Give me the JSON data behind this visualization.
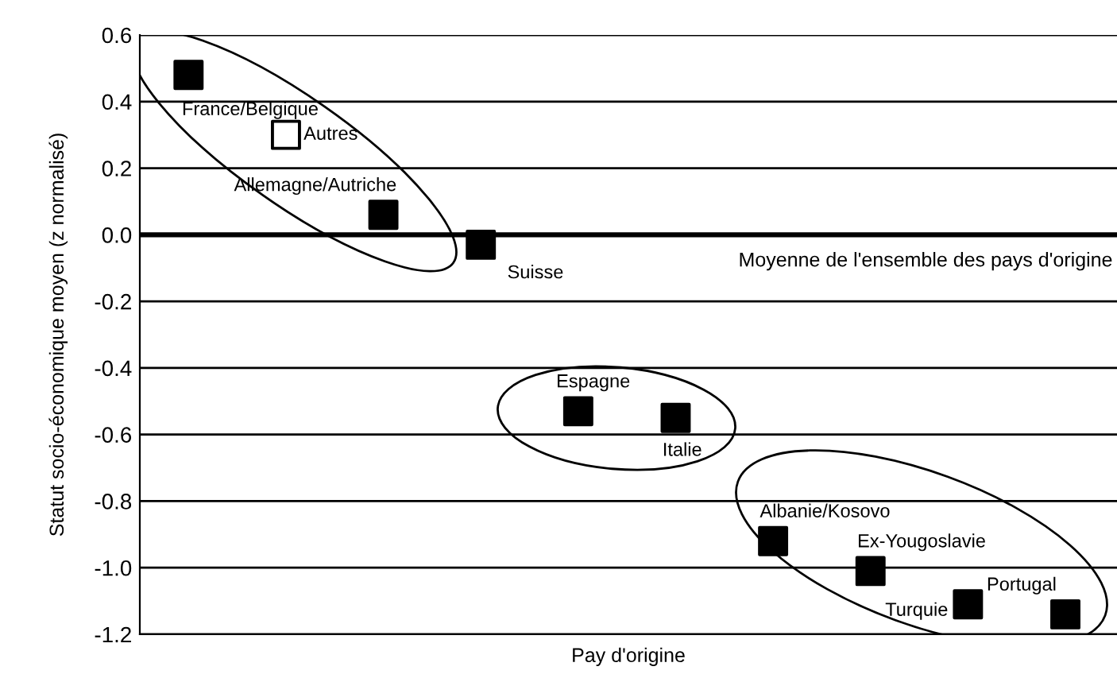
{
  "chart_data": {
    "type": "scatter",
    "xlabel": "Pay d'origine",
    "ylabel": "Statut socio-économique moyen (z normalisé)",
    "categories": [
      null,
      null,
      null,
      null,
      null,
      null,
      null,
      null,
      null,
      null
    ],
    "annotations": [
      "France/Belgique",
      "Autres",
      "Allemagne/Autriche",
      "Suisse",
      "Espagne",
      "Italie",
      "Albanie/Kosovo",
      "Ex-Yougoslavie",
      "Turquie",
      "Portugal"
    ],
    "series": [
      {
        "color": "#000000",
        "colors": [
          "#000000",
          "#ffffff",
          "#000000",
          "#000000",
          "#000000",
          "#000000",
          "#000000",
          "#000000",
          "#000000",
          "#000000"
        ],
        "values": [
          0.48,
          0.3,
          0.06,
          -0.03,
          -0.53,
          -0.55,
          -0.92,
          -1.01,
          -1.11,
          -1.14
        ]
      }
    ],
    "ylim": [
      -1.2,
      0.6
    ],
    "yticks": [
      {
        "value": -1.2,
        "label": "-1.2"
      },
      {
        "value": -1.0,
        "label": "-1.0"
      },
      {
        "value": -0.8,
        "label": "-0.8"
      },
      {
        "value": -0.6,
        "label": "-0.6"
      },
      {
        "value": -0.4,
        "label": "-0.4"
      },
      {
        "value": -0.2,
        "label": "-0.2"
      },
      {
        "value": 0.0,
        "label": "0.0"
      },
      {
        "value": 0.2,
        "label": "0.2"
      },
      {
        "value": 0.4,
        "label": "0.4"
      },
      {
        "value": 0.6,
        "label": "0.6"
      }
    ],
    "ref_lines": [
      {
        "axis": "y",
        "value": 0.0,
        "label": "Moyenne de l'ensemble des pays d'origine",
        "color": "#000000"
      }
    ],
    "grid": "y",
    "marker": "square",
    "tick_labels": "y",
    "legend": false
  }
}
